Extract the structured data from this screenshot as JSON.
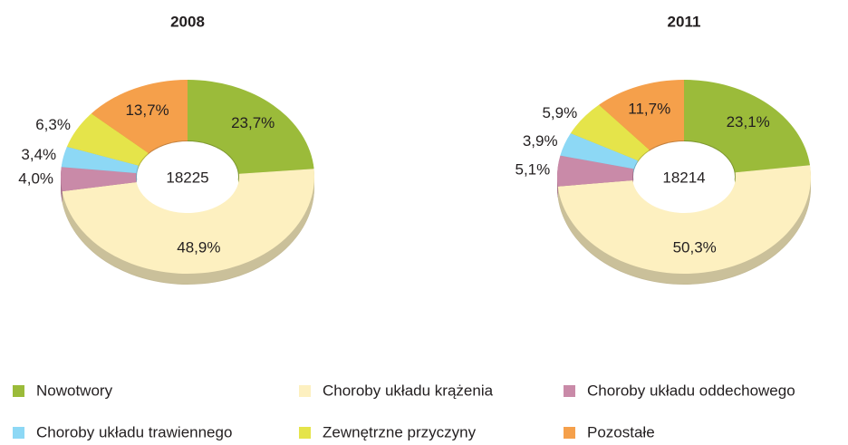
{
  "chart_data": [
    {
      "type": "pie",
      "title": "2008",
      "categories": [
        "Nowotwory",
        "Choroby układu krążenia",
        "Choroby układu oddechowego",
        "Choroby układu trawiennego",
        "Zewnętrzne przyczyny",
        "Pozostałe"
      ],
      "colors": [
        "#9bbb3a",
        "#fdf0c0",
        "#c98aa8",
        "#8dd8f5",
        "#e5e44a",
        "#f5a04b"
      ],
      "values": [
        23.7,
        48.9,
        4.0,
        3.4,
        6.3,
        13.7
      ],
      "value_labels": [
        "23,7%",
        "48,9%",
        "4,0%",
        "3,4%",
        "6,3%",
        "13,7%"
      ],
      "total": 18225
    },
    {
      "type": "pie",
      "title": "2011",
      "values": [
        23.1,
        50.3,
        5.1,
        3.9,
        5.9,
        11.7
      ],
      "value_labels": [
        "23,1%",
        "50,3%",
        "5,1%",
        "3,9%",
        "5,9%",
        "11,7%"
      ],
      "total": 18214
    }
  ]
}
